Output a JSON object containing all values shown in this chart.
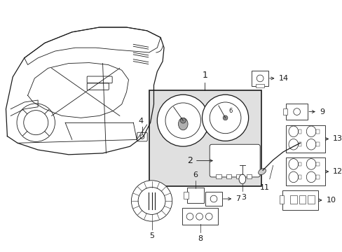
{
  "bg_color": "#ffffff",
  "line_color": "#1a1a1a",
  "box_bg": "#e0e0e0",
  "fig_width": 4.89,
  "fig_height": 3.6,
  "dpi": 100
}
